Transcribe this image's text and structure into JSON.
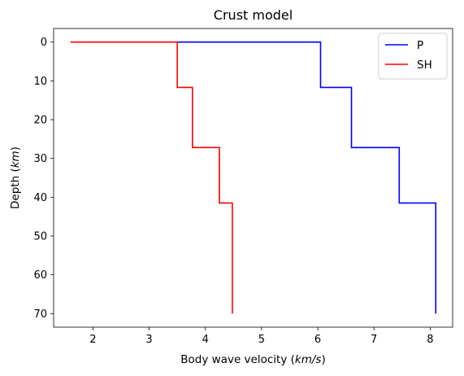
{
  "chart_data": {
    "type": "line",
    "title": "Crust model",
    "xlabel": "Body wave velocity (km/s)",
    "ylabel": "Depth (km)",
    "xlabel_parts": [
      "Body wave velocity (",
      "km/s",
      ")"
    ],
    "ylabel_parts": [
      "Depth (",
      "km",
      ")"
    ],
    "xlim": [
      1.3,
      8.4
    ],
    "ylim": [
      73.5,
      -3.5
    ],
    "y_inverted": true,
    "xticks": [
      2,
      3,
      4,
      5,
      6,
      7,
      8
    ],
    "yticks": [
      0,
      10,
      20,
      30,
      40,
      50,
      60,
      70
    ],
    "grid": false,
    "legend": {
      "placement": "top-right",
      "entries": [
        "P",
        "SH"
      ]
    },
    "series": [
      {
        "name": "P",
        "color": "#0000ff",
        "points": [
          [
            3.5,
            0
          ],
          [
            6.05,
            0
          ],
          [
            6.05,
            11.7
          ],
          [
            6.6,
            11.7
          ],
          [
            6.6,
            27.2
          ],
          [
            7.45,
            27.2
          ],
          [
            7.45,
            41.5
          ],
          [
            8.1,
            41.5
          ],
          [
            8.1,
            70
          ]
        ]
      },
      {
        "name": "SH",
        "color": "#ff0000",
        "points": [
          [
            1.6,
            0
          ],
          [
            3.5,
            0
          ],
          [
            3.5,
            11.7
          ],
          [
            3.77,
            11.7
          ],
          [
            3.77,
            27.2
          ],
          [
            4.25,
            27.2
          ],
          [
            4.25,
            41.5
          ],
          [
            4.48,
            41.5
          ],
          [
            4.48,
            70
          ]
        ]
      }
    ]
  }
}
